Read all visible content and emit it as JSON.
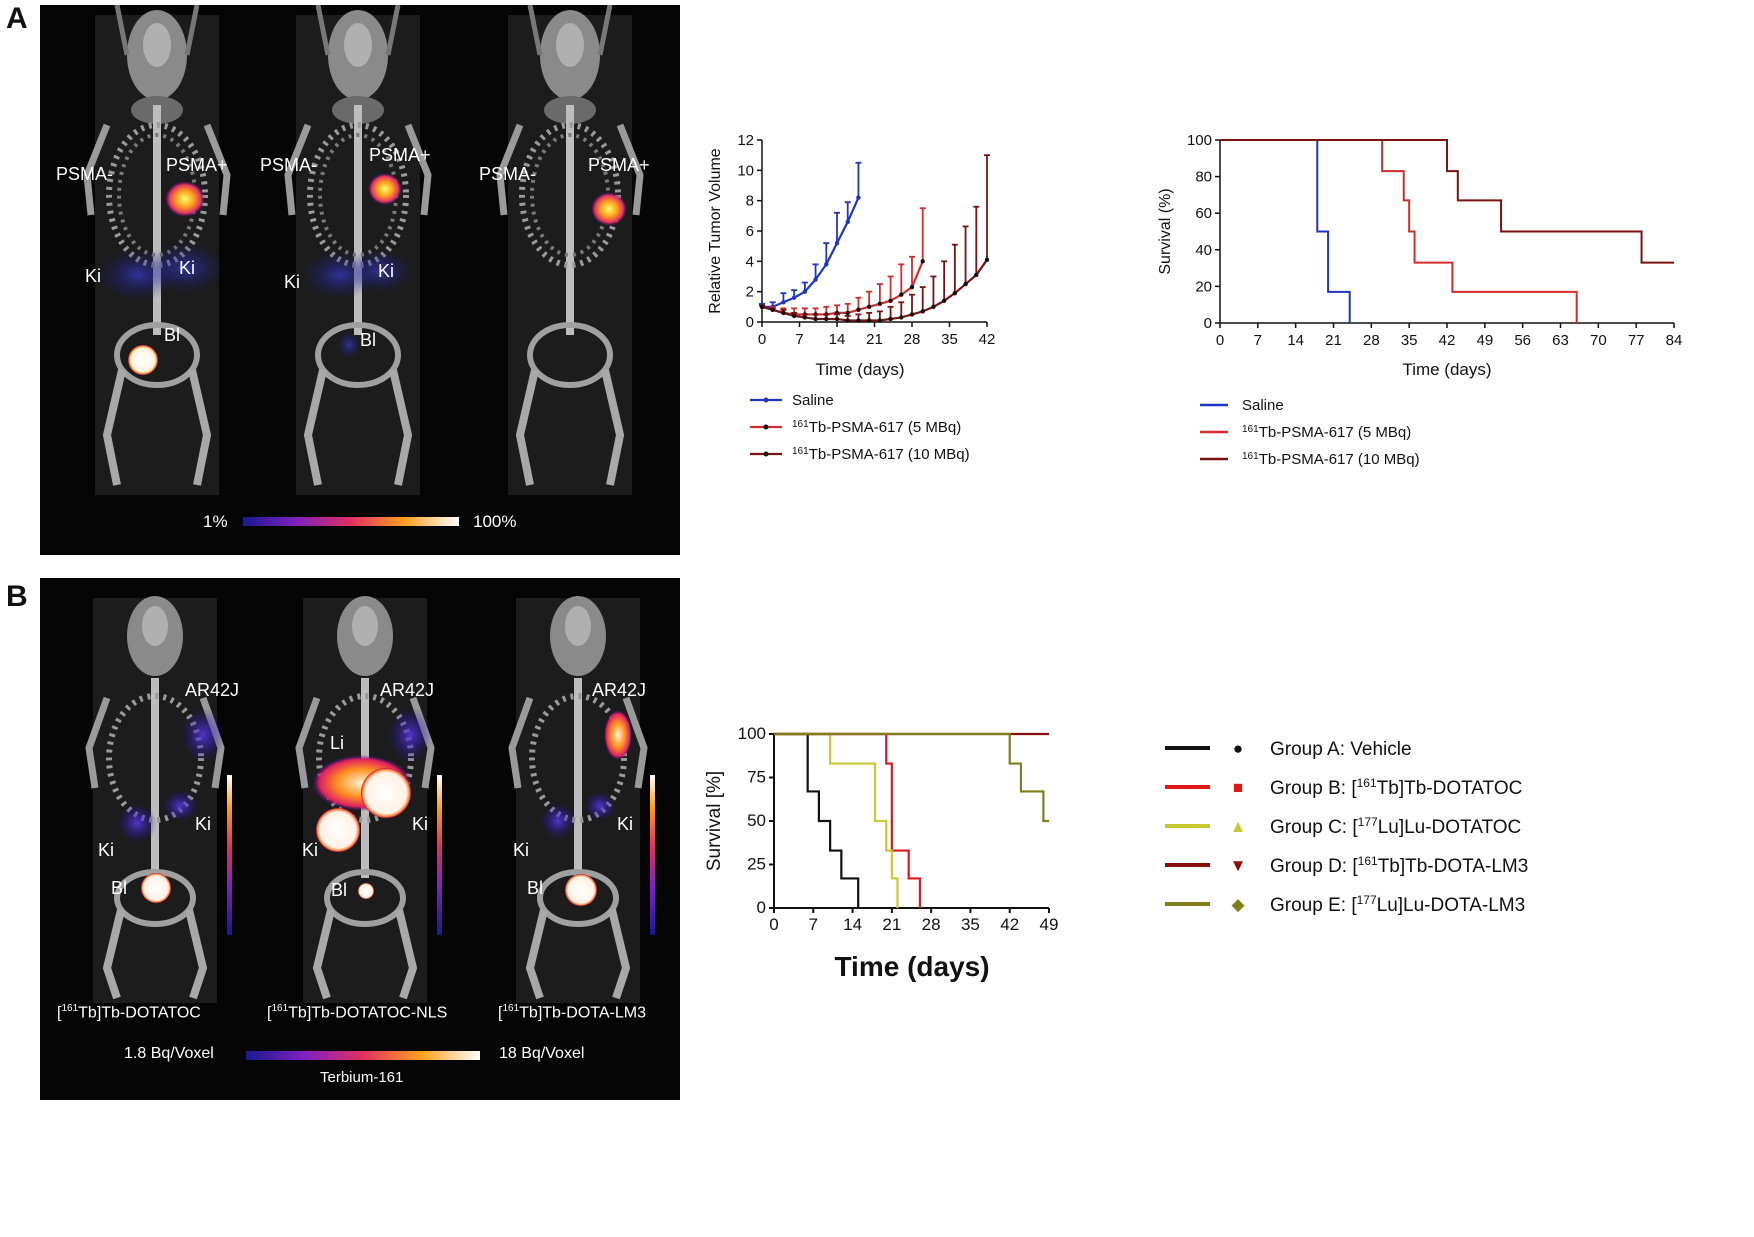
{
  "panels": {
    "a": {
      "letter": "A",
      "mice": [
        {
          "labels": {
            "neg": "PSMA-",
            "pos": "PSMA+",
            "ki1": "Ki",
            "ki2": "Ki",
            "bl": "Bl"
          }
        },
        {
          "labels": {
            "neg": "PSMA-",
            "pos": "PSMA+",
            "ki2": "Ki",
            "ki1": "Ki",
            "bl": "Bl"
          }
        },
        {
          "labels": {
            "neg": "PSMA-",
            "pos": "PSMA+"
          }
        }
      ],
      "scale": {
        "min": "1%",
        "max": "100%"
      }
    },
    "b": {
      "letter": "B",
      "mice": [
        {
          "labels": {
            "tumor": "AR42J",
            "ki1": "Ki",
            "ki2": "Ki",
            "bl": "Bl"
          },
          "caption_pre": "[",
          "caption_sup": "161",
          "caption_post": "Tb]Tb-DOTATOC"
        },
        {
          "labels": {
            "tumor": "AR42J",
            "li": "Li",
            "ki1": "Ki",
            "ki2": "Ki",
            "bl": "Bl"
          },
          "caption_pre": "[",
          "caption_sup": "161",
          "caption_post": "Tb]Tb-DOTATOC-NLS"
        },
        {
          "labels": {
            "tumor": "AR42J",
            "ki1": "Ki",
            "ki2": "Ki",
            "bl": "Bl"
          },
          "caption_pre": "[",
          "caption_sup": "161",
          "caption_post": "Tb]Tb-DOTA-LM3"
        }
      ],
      "scale": {
        "min": "1.8 Bq/Voxel",
        "max": "18 Bq/Voxel",
        "isotope": "Terbium-161"
      }
    }
  },
  "colors": {
    "saline": "#1f36c4",
    "dose5": "#d42b2b",
    "dose10": "#7a1212",
    "groupA": "#111111",
    "groupB": "#e01818",
    "groupC": "#c8c832",
    "groupD": "#8a0e0e",
    "groupE": "#7e7e1a"
  },
  "chart_data": [
    {
      "type": "line",
      "title": "",
      "xlabel": "Time (days)",
      "ylabel": "Relative Tumor Volume",
      "xlim": [
        0,
        42
      ],
      "ylim": [
        0,
        12
      ],
      "xticks": [
        0,
        7,
        14,
        21,
        28,
        35,
        42
      ],
      "yticks": [
        0,
        2,
        4,
        6,
        8,
        10,
        12
      ],
      "series": [
        {
          "name": "Saline",
          "color_key": "saline",
          "x": [
            0,
            2,
            4,
            6,
            8,
            10,
            12,
            14,
            16,
            18
          ],
          "y": [
            1.0,
            1.0,
            1.3,
            1.6,
            2.0,
            2.8,
            3.8,
            5.2,
            6.6,
            8.2
          ],
          "err": [
            0.2,
            0.3,
            0.6,
            0.5,
            0.6,
            1.0,
            1.4,
            2.0,
            1.3,
            2.3
          ]
        },
        {
          "name_sup": "161",
          "name": "Tb-PSMA-617 (5 MBq)",
          "color_key": "dose5",
          "x": [
            0,
            2,
            4,
            6,
            8,
            10,
            12,
            14,
            16,
            18,
            20,
            22,
            24,
            26,
            28,
            30
          ],
          "y": [
            1.0,
            0.8,
            0.6,
            0.5,
            0.5,
            0.5,
            0.5,
            0.6,
            0.6,
            0.8,
            1.0,
            1.2,
            1.4,
            1.8,
            2.3,
            4.0
          ],
          "err": [
            0.1,
            0.2,
            0.3,
            0.4,
            0.4,
            0.4,
            0.5,
            0.5,
            0.6,
            0.8,
            1.0,
            1.3,
            1.6,
            2.0,
            2.0,
            3.5
          ]
        },
        {
          "name_sup": "161",
          "name": "Tb-PSMA-617 (10 MBq)",
          "color_key": "dose10",
          "x": [
            0,
            2,
            4,
            6,
            8,
            10,
            12,
            14,
            16,
            18,
            20,
            22,
            24,
            26,
            28,
            30,
            32,
            34,
            36,
            38,
            40,
            42
          ],
          "y": [
            1.0,
            0.8,
            0.6,
            0.4,
            0.3,
            0.2,
            0.2,
            0.2,
            0.1,
            0.1,
            0.1,
            0.1,
            0.2,
            0.3,
            0.5,
            0.7,
            1.0,
            1.4,
            1.9,
            2.5,
            3.1,
            4.1
          ],
          "err": [
            0.1,
            0.1,
            0.2,
            0.2,
            0.2,
            0.3,
            0.3,
            0.3,
            0.3,
            0.4,
            0.5,
            0.6,
            0.8,
            1.0,
            1.3,
            1.6,
            2.0,
            2.6,
            3.2,
            3.8,
            4.5,
            6.9
          ]
        }
      ],
      "legend": "below"
    },
    {
      "type": "line",
      "step": true,
      "title": "",
      "xlabel": "Time (days)",
      "ylabel": "Survival (%)",
      "xlim": [
        0,
        84
      ],
      "ylim": [
        0,
        100
      ],
      "xticks": [
        0,
        7,
        14,
        21,
        28,
        35,
        42,
        49,
        56,
        63,
        70,
        77,
        84
      ],
      "yticks": [
        0,
        20,
        40,
        60,
        80,
        100
      ],
      "series": [
        {
          "name": "Saline",
          "color_key": "saline",
          "x": [
            0,
            18,
            18,
            20,
            20,
            24,
            24
          ],
          "y": [
            100,
            100,
            50,
            50,
            17,
            17,
            0
          ]
        },
        {
          "name_sup": "161",
          "name": "Tb-PSMA-617 (5 MBq)",
          "color_key": "dose5",
          "x": [
            0,
            30,
            30,
            34,
            34,
            35,
            35,
            36,
            36,
            43,
            43,
            66,
            66
          ],
          "y": [
            100,
            100,
            83,
            83,
            67,
            67,
            50,
            50,
            33,
            33,
            17,
            17,
            0
          ]
        },
        {
          "name_sup": "161",
          "name": "Tb-PSMA-617 (10 MBq)",
          "color_key": "dose10",
          "x": [
            0,
            42,
            42,
            44,
            44,
            52,
            52,
            78,
            78,
            84
          ],
          "y": [
            100,
            100,
            83,
            83,
            67,
            67,
            50,
            50,
            33,
            33
          ]
        }
      ],
      "legend": "below"
    },
    {
      "type": "line",
      "step": true,
      "title": "",
      "xlabel": "Time (days)",
      "ylabel": "Survival [%]",
      "xlim": [
        0,
        49
      ],
      "ylim": [
        0,
        100
      ],
      "xticks": [
        0,
        7,
        14,
        21,
        28,
        35,
        42,
        49
      ],
      "yticks": [
        0,
        25,
        50,
        75,
        100
      ],
      "series": [
        {
          "name": "Group A: Vehicle",
          "marker": "●",
          "color_key": "groupA",
          "x": [
            0,
            6,
            6,
            8,
            8,
            10,
            10,
            12,
            12,
            15,
            15
          ],
          "y": [
            100,
            100,
            67,
            67,
            50,
            50,
            33,
            33,
            17,
            17,
            0
          ]
        },
        {
          "name_pre": "Group B: [",
          "name_sup": "161",
          "name": "Tb]Tb-DOTATOC",
          "marker": "■",
          "color_key": "groupB",
          "x": [
            0,
            20,
            20,
            21,
            21,
            24,
            24,
            26,
            26
          ],
          "y": [
            100,
            100,
            83,
            83,
            33,
            33,
            17,
            17,
            0
          ]
        },
        {
          "name_pre": "Group C: [",
          "name_sup": "177",
          "name": "Lu]Lu-DOTATOC",
          "marker": "▲",
          "color_key": "groupC",
          "x": [
            0,
            10,
            10,
            18,
            18,
            20,
            20,
            21,
            21,
            22,
            22
          ],
          "y": [
            100,
            100,
            83,
            83,
            50,
            50,
            33,
            33,
            17,
            17,
            0
          ]
        },
        {
          "name_pre": "Group D: [",
          "name_sup": "161",
          "name": "Tb]Tb-DOTA-LM3",
          "marker": "▼",
          "color_key": "groupD",
          "x": [
            0,
            49
          ],
          "y": [
            100,
            100
          ]
        },
        {
          "name_pre": "Group E: [",
          "name_sup": "177",
          "name": "Lu]Lu-DOTA-LM3",
          "marker": "◆",
          "color_key": "groupE",
          "x": [
            0,
            42,
            42,
            44,
            44,
            48,
            48,
            49
          ],
          "y": [
            100,
            100,
            83,
            83,
            67,
            67,
            50,
            50
          ]
        }
      ],
      "legend": "right"
    }
  ]
}
